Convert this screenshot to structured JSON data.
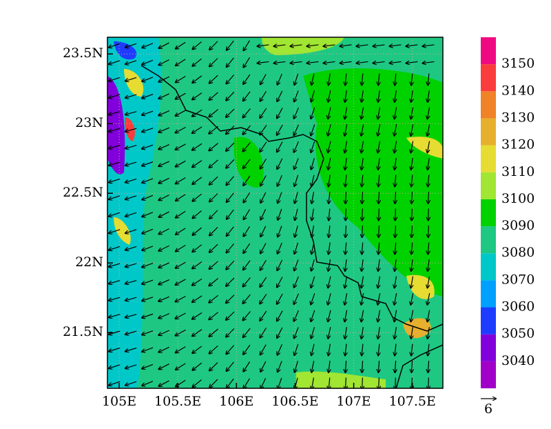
{
  "map": {
    "xlim": [
      104.9,
      107.76
    ],
    "ylim": [
      21.1,
      23.62
    ],
    "xticks": [
      {
        "value": 105,
        "label": "105E"
      },
      {
        "value": 105.5,
        "label": "105.5E"
      },
      {
        "value": 106,
        "label": "106E"
      },
      {
        "value": 106.5,
        "label": "106.5E"
      },
      {
        "value": 107,
        "label": "107E"
      },
      {
        "value": 107.5,
        "label": "107.5E"
      }
    ],
    "yticks": [
      {
        "value": 21.5,
        "label": "21.5N"
      },
      {
        "value": 22,
        "label": "22N"
      },
      {
        "value": 22.5,
        "label": "22.5N"
      },
      {
        "value": 23,
        "label": "23N"
      },
      {
        "value": 23.5,
        "label": "23.5N"
      }
    ],
    "grid": true,
    "colorbar": {
      "levels": [
        3040,
        3050,
        3060,
        3070,
        3080,
        3090,
        3100,
        3110,
        3120,
        3130,
        3140,
        3150
      ],
      "colors": [
        "#a000c8",
        "#8200dc",
        "#1e3cff",
        "#00a0ff",
        "#00c8c8",
        "#1ec882",
        "#00d200",
        "#a0e632",
        "#e6dc32",
        "#e6af2d",
        "#f08228",
        "#fa3c3c",
        "#f00a82"
      ]
    },
    "reference_vector": "6"
  }
}
